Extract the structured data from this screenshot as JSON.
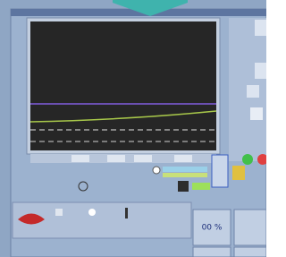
{
  "status": {
    "percent": "00 %"
  }
}
